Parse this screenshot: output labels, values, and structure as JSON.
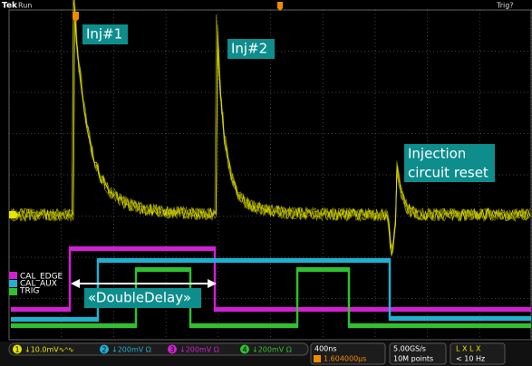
{
  "header": {
    "brand": "Tek",
    "status": "Run",
    "trigger_status": "Trig?"
  },
  "annotations": {
    "inj1": "Inj#1",
    "inj2": "Inj#2",
    "reset_line1": "Injection",
    "reset_line2": "circuit reset",
    "double_delay": "«DoubleDelay»"
  },
  "channel_labels": [
    "CAL_EDGE",
    "CAL_AUX",
    "TRIG"
  ],
  "status_bar": {
    "channels": [
      {
        "number": "1",
        "setting": "↓10.0mV∿ᴬ∿"
      },
      {
        "number": "2",
        "setting": "↓200mV Ω"
      },
      {
        "number": "3",
        "setting": "↓200mV Ω"
      },
      {
        "number": "4",
        "setting": "↓200mV Ω"
      }
    ],
    "timebase": "400ns",
    "trigger_position": "1.604000µs",
    "sample_rate": "5.00GS/s",
    "record_length": "10M points",
    "trigger_source": "L X L X",
    "trigger_freq": "< 10 Hz"
  }
}
